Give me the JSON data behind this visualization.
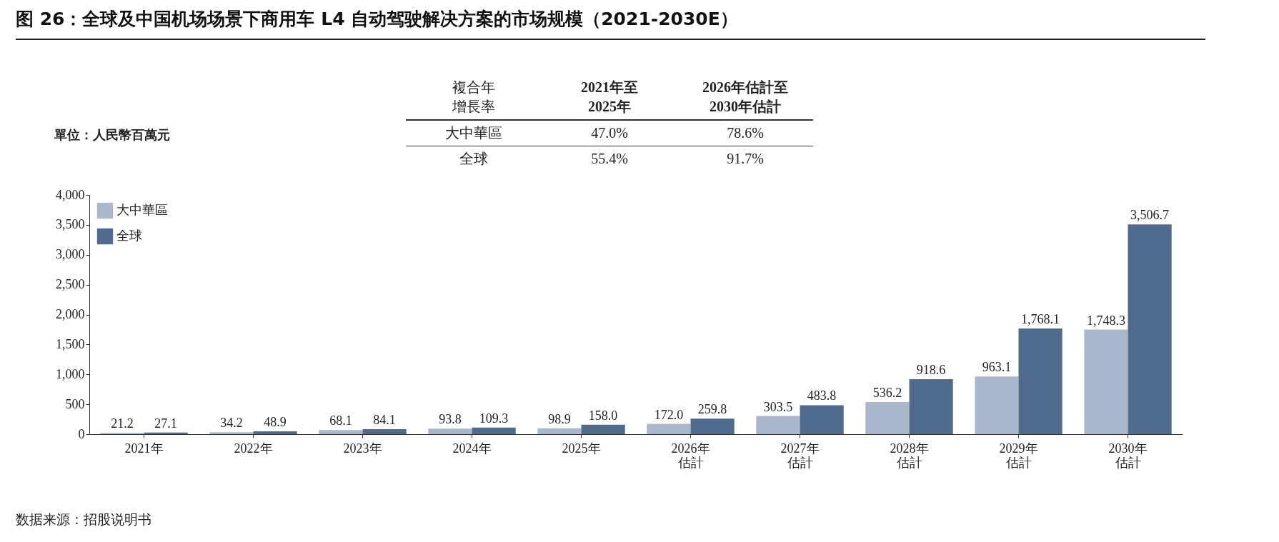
{
  "chart_data": {
    "type": "bar",
    "title": "图 26：全球及中国机场场景下商用车 L4 自动驾驶解决方案的市场规模（2021-2030E）",
    "ylabel": "單位：人民幣百萬元",
    "categories": [
      "2021年",
      "2022年",
      "2023年",
      "2024年",
      "2025年",
      "2026年估計",
      "2027年估計",
      "2028年估計",
      "2029年估計",
      "2030年估計"
    ],
    "series": [
      {
        "name": "大中華區",
        "color": "#a9b8cc",
        "values": [
          21.2,
          34.2,
          68.1,
          93.8,
          98.9,
          172.0,
          303.5,
          536.2,
          963.1,
          1748.3
        ],
        "value_labels": [
          "21.2",
          "34.2",
          "68.1",
          "93.8",
          "98.9",
          "172.0",
          "303.5",
          "536.2",
          "963.1",
          "1,748.3"
        ]
      },
      {
        "name": "全球",
        "color": "#4f6b8d",
        "values": [
          27.1,
          48.9,
          84.1,
          109.3,
          158.0,
          259.8,
          483.8,
          918.6,
          1768.1,
          3506.7
        ],
        "value_labels": [
          "27.1",
          "48.9",
          "84.1",
          "109.3",
          "158.0",
          "259.8",
          "483.8",
          "918.6",
          "1,768.1",
          "3,506.7"
        ]
      }
    ],
    "ylim": [
      0,
      4000
    ],
    "yticks": [
      0,
      500,
      {
        "value": 1000,
        "label": "1,000"
      },
      {
        "value": 1500,
        "label": "1,500"
      },
      {
        "value": 2000,
        "label": "2,000"
      },
      {
        "value": 2500,
        "label": "2,500"
      },
      {
        "value": 3000,
        "label": "3,000"
      },
      {
        "value": 3500,
        "label": "3,500"
      },
      {
        "value": 4000,
        "label": "4,000"
      }
    ],
    "grid": false,
    "legend": "top left",
    "annotations": [
      "複合年增長率",
      "2021年至2025年",
      "2026年估計至2030年估計",
      "大中華區",
      "47.0%",
      "78.6%",
      "全球",
      "55.4%",
      "91.7%",
      "数据来源：招股说明书"
    ]
  }
}
